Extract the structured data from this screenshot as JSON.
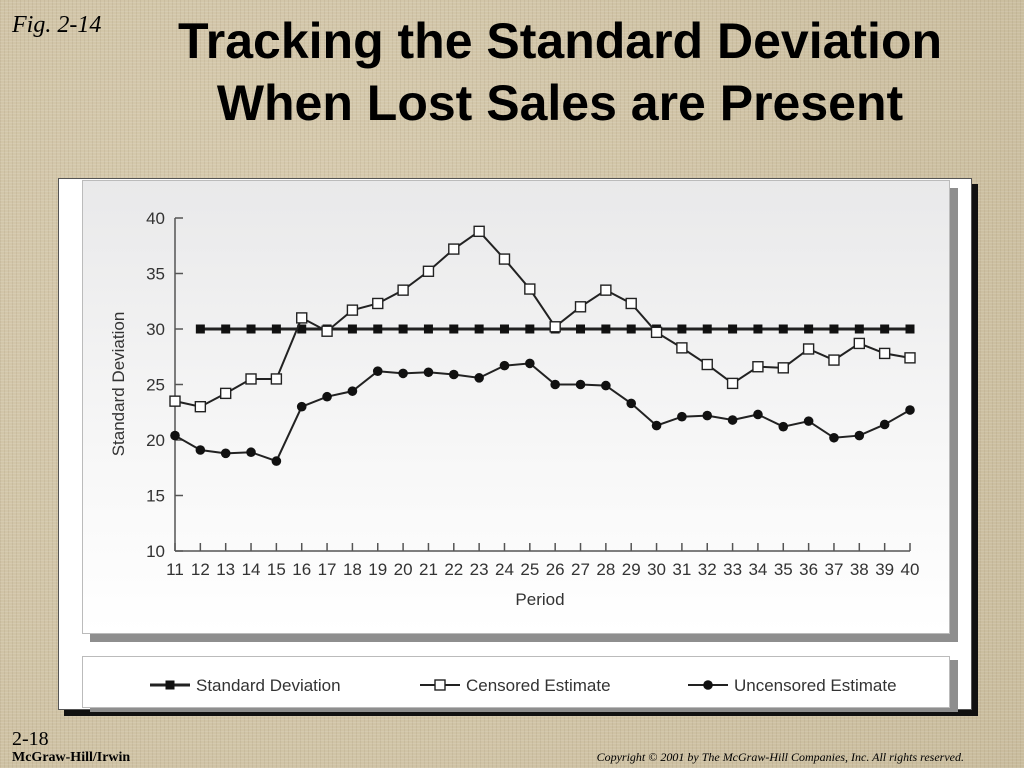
{
  "slide": {
    "fig_label": "Fig. 2-14",
    "title_line1": "Tracking the Standard Deviation",
    "title_line2": "When Lost Sales are Present",
    "page_number": "2-18",
    "publisher": "McGraw-Hill/Irwin",
    "copyright": "Copyright © 2001 by The McGraw-Hill Companies, Inc.  All rights reserved."
  },
  "chart_data": {
    "type": "line",
    "xlabel": "Period",
    "ylabel": "Standard Deviation",
    "ylim": [
      10,
      40
    ],
    "yticks": [
      10,
      15,
      20,
      25,
      30,
      35,
      40
    ],
    "x": [
      11,
      12,
      13,
      14,
      15,
      16,
      17,
      18,
      19,
      20,
      21,
      22,
      23,
      24,
      25,
      26,
      27,
      28,
      29,
      30,
      31,
      32,
      33,
      34,
      35,
      36,
      37,
      38,
      39,
      40
    ],
    "legend_position": "bottom",
    "grid": false,
    "series": [
      {
        "name": "Standard Deviation",
        "marker": "filled-square",
        "color": "#000000",
        "x": [
          12,
          13,
          14,
          15,
          16,
          17,
          18,
          19,
          20,
          21,
          22,
          23,
          24,
          25,
          26,
          27,
          28,
          29,
          30,
          31,
          32,
          33,
          34,
          35,
          36,
          37,
          38,
          39,
          40
        ],
        "values": [
          30,
          30,
          30,
          30,
          30,
          30,
          30,
          30,
          30,
          30,
          30,
          30,
          30,
          30,
          30,
          30,
          30,
          30,
          30,
          30,
          30,
          30,
          30,
          30,
          30,
          30,
          30,
          30,
          30
        ]
      },
      {
        "name": "Censored Estimate",
        "marker": "open-square",
        "color": "#000000",
        "x": [
          11,
          12,
          13,
          14,
          15,
          16,
          17,
          18,
          19,
          20,
          21,
          22,
          23,
          24,
          25,
          26,
          27,
          28,
          29,
          30,
          31,
          32,
          33,
          34,
          35,
          36,
          37,
          38,
          39,
          40
        ],
        "values": [
          23.5,
          23.0,
          24.2,
          25.5,
          25.5,
          31.0,
          29.8,
          31.7,
          32.3,
          33.5,
          35.2,
          37.2,
          38.8,
          36.3,
          33.6,
          30.2,
          32.0,
          33.5,
          32.3,
          29.7,
          28.3,
          26.8,
          25.1,
          26.6,
          26.5,
          28.2,
          27.2,
          28.7,
          27.8,
          27.4
        ]
      },
      {
        "name": "Uncensored Estimate",
        "marker": "filled-circle",
        "color": "#000000",
        "x": [
          11,
          12,
          13,
          14,
          15,
          16,
          17,
          18,
          19,
          20,
          21,
          22,
          23,
          24,
          25,
          26,
          27,
          28,
          29,
          30,
          31,
          32,
          33,
          34,
          35,
          36,
          37,
          38,
          39,
          40
        ],
        "values": [
          20.4,
          19.1,
          18.8,
          18.9,
          18.1,
          23.0,
          23.9,
          24.4,
          26.2,
          26.0,
          26.1,
          25.9,
          25.6,
          26.7,
          26.9,
          25.0,
          25.0,
          24.9,
          23.3,
          21.3,
          22.1,
          22.2,
          21.8,
          22.3,
          21.2,
          21.7,
          20.2,
          20.4,
          21.4,
          22.7
        ]
      }
    ]
  }
}
